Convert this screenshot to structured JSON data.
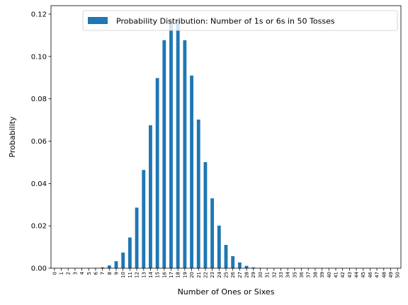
{
  "chart_data": {
    "type": "bar",
    "title": "",
    "xlabel": "Number of Ones or Sixes",
    "ylabel": "Probability",
    "categories": [
      "0",
      "1",
      "2",
      "3",
      "4",
      "5",
      "6",
      "7",
      "8",
      "9",
      "10",
      "11",
      "12",
      "13",
      "14",
      "15",
      "16",
      "17",
      "18",
      "19",
      "20",
      "21",
      "22",
      "23",
      "24",
      "25",
      "26",
      "27",
      "28",
      "29",
      "30",
      "31",
      "32",
      "33",
      "34",
      "35",
      "36",
      "37",
      "38",
      "39",
      "40",
      "41",
      "42",
      "43",
      "44",
      "45",
      "46",
      "47",
      "48",
      "49",
      "50"
    ],
    "series": [
      {
        "name": "Probability Distribution: Number of 1s or 6s in 50 Tosses",
        "color": "#1f77b4",
        "values": [
          0,
          0,
          0,
          0,
          0,
          3e-05,
          0.0001,
          0.0004,
          0.0013,
          0.0033,
          0.0074,
          0.0145,
          0.0286,
          0.0464,
          0.0675,
          0.0898,
          0.1077,
          0.1171,
          0.1171,
          0.1077,
          0.091,
          0.0702,
          0.0501,
          0.033,
          0.0201,
          0.011,
          0.0057,
          0.0027,
          0.0011,
          0.0004,
          0.0001,
          0,
          0,
          0,
          0,
          0,
          0,
          0,
          0,
          0,
          0,
          0,
          0,
          0,
          0,
          0,
          0,
          0,
          0,
          0,
          0
        ]
      }
    ],
    "ylim": [
      0,
      0.124
    ],
    "yticks": [
      "0.00",
      "0.02",
      "0.04",
      "0.06",
      "0.08",
      "0.10",
      "0.12"
    ],
    "grid": false,
    "legend_position": "top-right"
  }
}
